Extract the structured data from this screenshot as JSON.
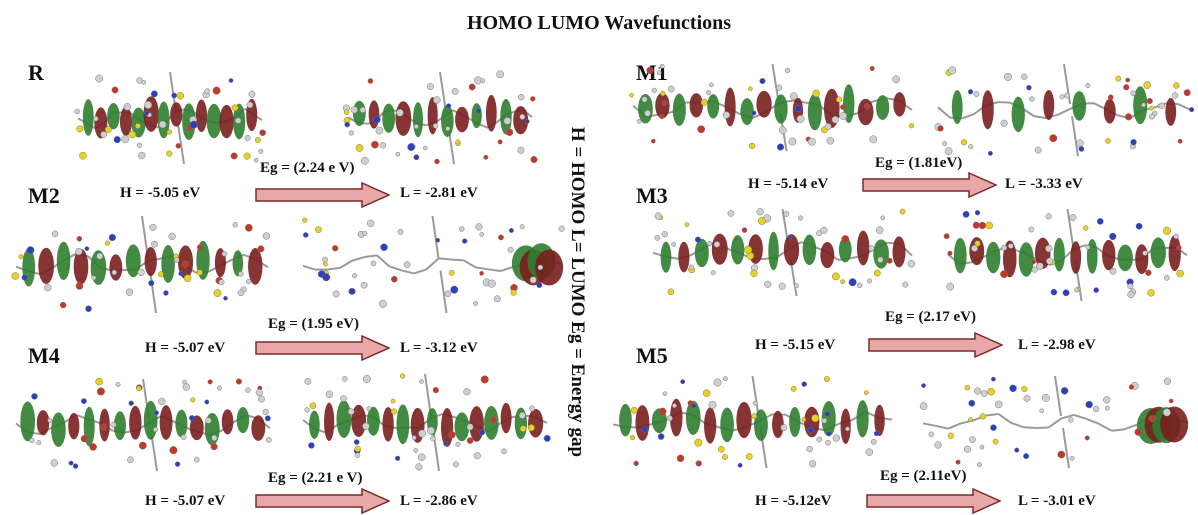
{
  "title": "HOMO LUMO Wavefunctions",
  "side_note": "H = HOMO  L= LUMO Eg = Energy gap",
  "colors": {
    "lobe_green": "#2f7d2f",
    "lobe_red": "#7a1e1e",
    "arrow_fill": "#e8a8a8",
    "arrow_stroke": "#7a2a2a"
  },
  "panels": [
    {
      "label": "R",
      "homo": "",
      "lumo": "",
      "gap": ""
    },
    {
      "label": "M1",
      "homo": "H = -5.14 eV",
      "lumo": "L = -3.33 eV",
      "gap": "Eg = (1.81eV)"
    },
    {
      "label": "M2",
      "homo": "H = -5.05 eV",
      "lumo": "L = -2.81 eV",
      "gap": "Eg = (2.24 e V)"
    },
    {
      "label": "M3",
      "homo": "H = -5.15 eV",
      "lumo": "L = -2.98 eV",
      "gap": "Eg = (2.17 eV)"
    },
    {
      "label": "M4",
      "homo": "H = -5.07 eV",
      "lumo": "L = -3.12 eV",
      "gap": "Eg = (1.95 eV)"
    },
    {
      "label": "M5",
      "homo": "H = -5.12eV",
      "lumo": "L = -3.01 eV",
      "gap": "Eg = (2.11eV)"
    },
    {
      "label": "",
      "homo": "H = -5.07 eV",
      "lumo": "L = -2.86 eV",
      "gap": "Eg = (2.21 e V)"
    }
  ]
}
